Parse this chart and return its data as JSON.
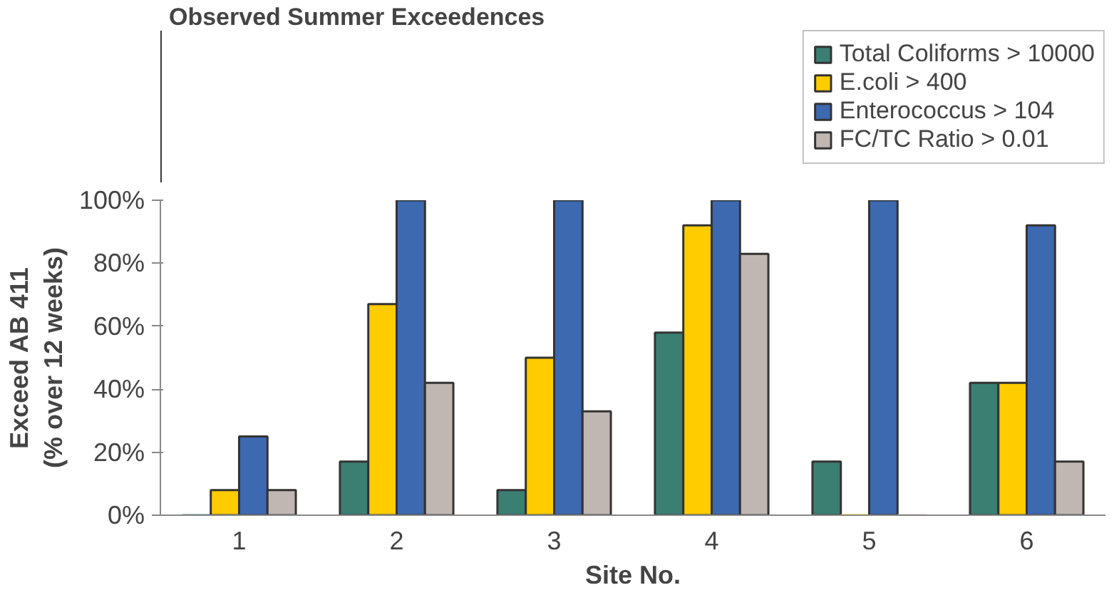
{
  "chart_data": {
    "type": "bar",
    "title": "Observed Summer Exceedences",
    "xlabel": "Site No.",
    "ylabel": "Exceed AB 411\n(% over 12 weeks)",
    "categories": [
      "1",
      "2",
      "3",
      "4",
      "5",
      "6"
    ],
    "series": [
      {
        "name": "Total Coliforms > 10000",
        "color": "#3a7f72",
        "values": [
          0,
          17,
          8,
          58,
          17,
          42
        ]
      },
      {
        "name": "E.coli > 400",
        "color": "#ffcc00",
        "values": [
          8,
          67,
          50,
          92,
          0,
          42
        ]
      },
      {
        "name": "Enterococcus > 104",
        "color": "#3d69b1",
        "values": [
          25,
          100,
          100,
          100,
          100,
          92
        ]
      },
      {
        "name": "FC/TC Ratio > 0.01",
        "color": "#c0b6b2",
        "values": [
          8,
          42,
          33,
          83,
          0,
          17
        ]
      }
    ],
    "ylim": [
      0,
      100
    ],
    "yticks": [
      {
        "value": 0,
        "label": "0%"
      },
      {
        "value": 20,
        "label": "20%"
      },
      {
        "value": 40,
        "label": "40%"
      },
      {
        "value": 60,
        "label": "60%"
      },
      {
        "value": 80,
        "label": "80%"
      },
      {
        "value": 100,
        "label": "100%"
      }
    ],
    "grid": false,
    "legend": "top right"
  }
}
